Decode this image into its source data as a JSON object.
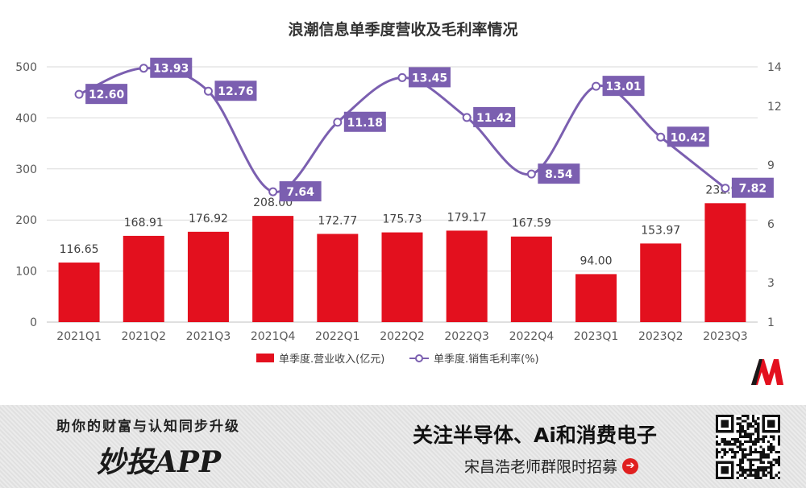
{
  "chart_data": {
    "type": "bar+line",
    "title": "浪潮信息单季度营收及毛利率情况",
    "categories": [
      "2021Q1",
      "2021Q2",
      "2021Q3",
      "2021Q4",
      "2022Q1",
      "2022Q2",
      "2022Q3",
      "2022Q4",
      "2023Q1",
      "2023Q2",
      "2023Q3"
    ],
    "series": [
      {
        "name": "单季度.营业收入(亿元)",
        "type": "bar",
        "axis": "left",
        "color": "#e3101e",
        "values": [
          116.65,
          168.91,
          176.92,
          208.0,
          172.77,
          175.73,
          179.17,
          167.59,
          94.0,
          153.97,
          232.93
        ],
        "labels": [
          "116.65",
          "168.91",
          "176.92",
          "208.00",
          "172.77",
          "175.73",
          "179.17",
          "167.59",
          "94.00",
          "153.97",
          "232.93"
        ]
      },
      {
        "name": "单季度.销售毛利率(%)",
        "type": "line",
        "axis": "right",
        "color": "#7b5fb0",
        "values": [
          12.6,
          13.93,
          12.76,
          7.64,
          11.18,
          13.45,
          11.42,
          8.54,
          13.01,
          10.42,
          7.82
        ],
        "labels": [
          "12.60",
          "13.93",
          "12.76",
          "7.64",
          "11.18",
          "13.45",
          "11.42",
          "8.54",
          "13.01",
          "10.42",
          "7.82"
        ]
      }
    ],
    "y_left": {
      "min": 0,
      "max": 500,
      "ticks": [
        "0",
        "100",
        "200",
        "300",
        "400",
        "500"
      ]
    },
    "y_right": {
      "min": 1,
      "max": 14,
      "ticks": [
        "1",
        "3",
        "6",
        "9",
        "12",
        "14"
      ]
    },
    "grid": true,
    "legend_position": "bottom"
  },
  "footer": {
    "slogan": "助你的财富与认知同步升级",
    "app_name": "妙投APP",
    "headline": "关注半导体、Ai和消费电子",
    "subline": "宋昌浩老师群限时招募",
    "arrow_glyph": "➔"
  }
}
